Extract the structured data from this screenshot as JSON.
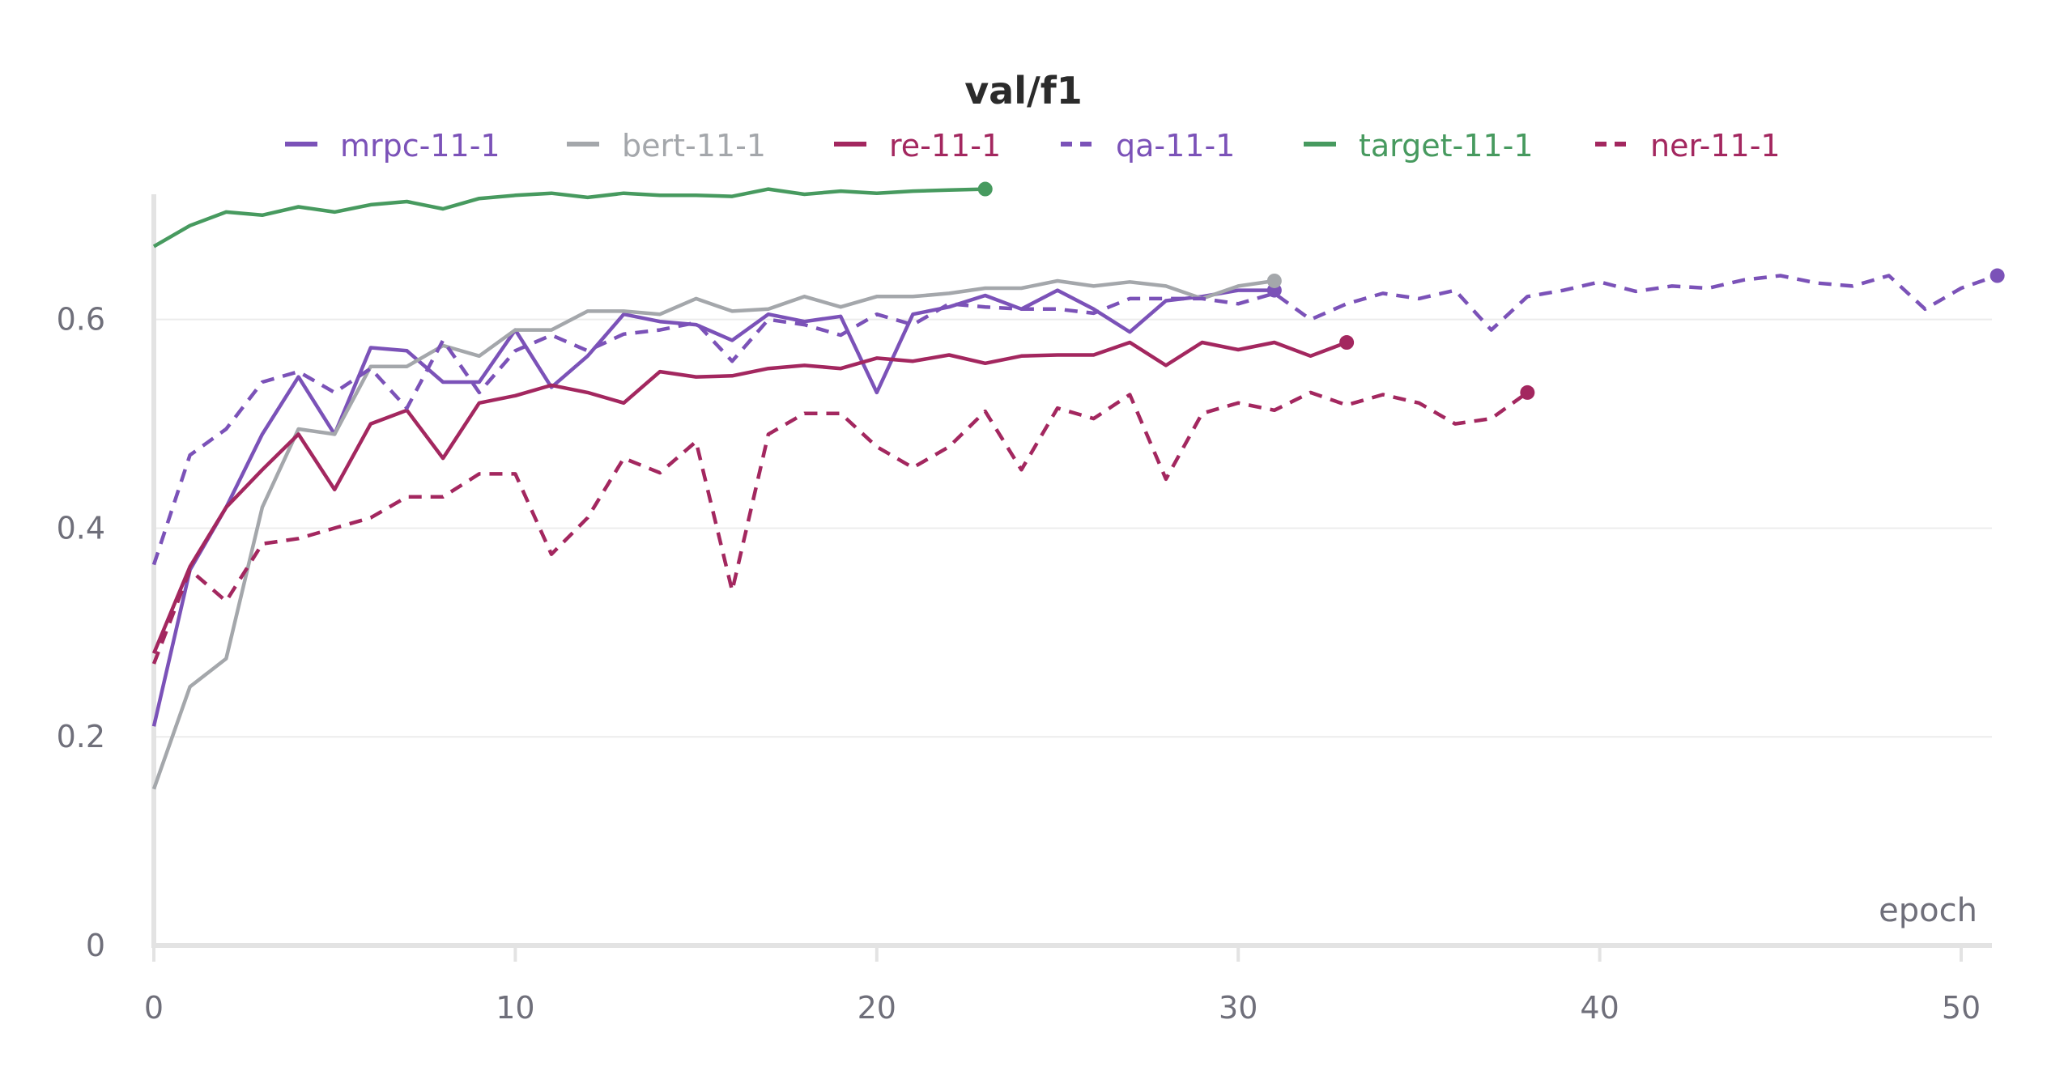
{
  "chart_data": {
    "type": "line",
    "title": "val/f1",
    "xlabel": "epoch",
    "ylabel": "",
    "xlim": [
      0,
      51
    ],
    "ylim": [
      0,
      0.72
    ],
    "xticks": [
      0,
      10,
      20,
      30,
      40,
      50
    ],
    "yticks": [
      0,
      0.2,
      0.4,
      0.6
    ],
    "ytick_labels": [
      "0",
      "0.2",
      "0.4",
      "0.6"
    ],
    "grid": true,
    "legend_position": "top",
    "series": [
      {
        "name": "mrpc-11-1",
        "color": "#7b52b8",
        "dashed": false,
        "values": [
          0.21,
          0.36,
          0.42,
          0.49,
          0.545,
          0.49,
          0.573,
          0.57,
          0.54,
          0.54,
          0.59,
          0.535,
          0.565,
          0.605,
          0.598,
          0.595,
          0.58,
          0.605,
          0.598,
          0.603,
          0.53,
          0.605,
          0.612,
          0.623,
          0.61,
          0.628,
          0.61,
          0.588,
          0.618,
          0.622,
          0.628,
          0.628
        ]
      },
      {
        "name": "bert-11-1",
        "color": "#a4a7ab",
        "dashed": false,
        "values": [
          0.15,
          0.248,
          0.275,
          0.42,
          0.495,
          0.49,
          0.555,
          0.555,
          0.575,
          0.565,
          0.59,
          0.59,
          0.608,
          0.608,
          0.605,
          0.62,
          0.608,
          0.61,
          0.622,
          0.612,
          0.622,
          0.622,
          0.625,
          0.63,
          0.63,
          0.637,
          0.632,
          0.636,
          0.632,
          0.62,
          0.632,
          0.637
        ]
      },
      {
        "name": "re-11-1",
        "color": "#a3275f",
        "dashed": false,
        "values": [
          0.28,
          0.363,
          0.42,
          0.456,
          0.49,
          0.437,
          0.5,
          0.513,
          0.467,
          0.52,
          0.527,
          0.537,
          0.53,
          0.52,
          0.55,
          0.545,
          0.546,
          0.553,
          0.556,
          0.553,
          0.563,
          0.56,
          0.566,
          0.558,
          0.565,
          0.566,
          0.566,
          0.578,
          0.556,
          0.578,
          0.571,
          0.578,
          0.565,
          0.578
        ]
      },
      {
        "name": "qa-11-1",
        "color": "#7b52b8",
        "dashed": true,
        "values": [
          0.365,
          0.47,
          0.495,
          0.54,
          0.55,
          0.53,
          0.553,
          0.515,
          0.58,
          0.53,
          0.57,
          0.585,
          0.57,
          0.586,
          0.59,
          0.597,
          0.56,
          0.6,
          0.595,
          0.585,
          0.605,
          0.595,
          0.615,
          0.612,
          0.61,
          0.61,
          0.606,
          0.62,
          0.62,
          0.62,
          0.615,
          0.625,
          0.6,
          0.615,
          0.625,
          0.62,
          0.628,
          0.59,
          0.622,
          0.628,
          0.636,
          0.627,
          0.632,
          0.63,
          0.638,
          0.642,
          0.635,
          0.632,
          0.642,
          0.61,
          0.63,
          0.642
        ]
      },
      {
        "name": "target-11-1",
        "color": "#479a5f",
        "dashed": false,
        "values": [
          0.67,
          0.69,
          0.703,
          0.7,
          0.708,
          0.703,
          0.71,
          0.713,
          0.706,
          0.716,
          0.719,
          0.721,
          0.717,
          0.721,
          0.719,
          0.719,
          0.718,
          0.725,
          0.72,
          0.723,
          0.721,
          0.723,
          0.724,
          0.725
        ]
      },
      {
        "name": "ner-11-1",
        "color": "#a3275f",
        "dashed": true,
        "values": [
          0.27,
          0.36,
          0.33,
          0.385,
          0.39,
          0.4,
          0.41,
          0.43,
          0.43,
          0.452,
          0.452,
          0.375,
          0.41,
          0.467,
          0.453,
          0.483,
          0.34,
          0.49,
          0.51,
          0.51,
          0.478,
          0.458,
          0.478,
          0.512,
          0.456,
          0.515,
          0.505,
          0.528,
          0.447,
          0.51,
          0.52,
          0.513,
          0.53,
          0.518,
          0.528,
          0.52,
          0.5,
          0.505,
          0.53
        ]
      }
    ]
  }
}
